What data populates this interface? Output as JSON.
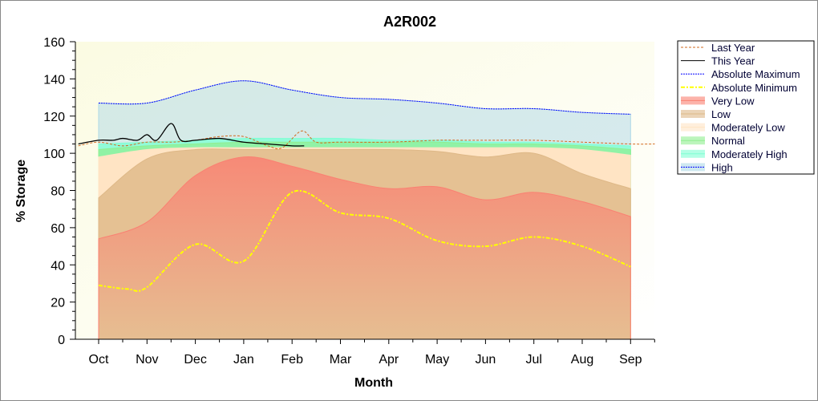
{
  "chart_data": {
    "type": "area",
    "title": "A2R002",
    "xlabel": "Month",
    "ylabel": "% Storage",
    "ylim": [
      0,
      160
    ],
    "yticks": [
      0,
      20,
      40,
      60,
      80,
      100,
      120,
      140,
      160
    ],
    "categories": [
      "Oct",
      "Nov",
      "Dec",
      "Jan",
      "Feb",
      "Mar",
      "Apr",
      "May",
      "Jun",
      "Jul",
      "Aug",
      "Sep"
    ],
    "legend_position": "right",
    "bands": [
      {
        "name": "High",
        "color": "#add8e6",
        "top": [
          127,
          127,
          134,
          139,
          134,
          130,
          129,
          127,
          124,
          124,
          122,
          121
        ]
      },
      {
        "name": "Moderately High",
        "color": "#7fffd4",
        "top": [
          105,
          106,
          107,
          108,
          108,
          108,
          107,
          107,
          106,
          106,
          105,
          104
        ]
      },
      {
        "name": "Normal",
        "color": "#90ee90",
        "top": [
          102,
          104,
          105,
          106,
          106,
          106,
          106,
          106,
          105,
          105,
          104,
          102
        ]
      },
      {
        "name": "Moderately Low",
        "color": "#ffe4c4",
        "top": [
          98,
          102,
          103,
          103,
          103,
          103,
          103,
          103,
          103,
          103,
          102,
          99
        ]
      },
      {
        "name": "Low",
        "color": "#deb887",
        "top": [
          76,
          97,
          102,
          102,
          102,
          102,
          102,
          101,
          98,
          100,
          89,
          81
        ]
      },
      {
        "name": "Very Low",
        "color": "#fa8072",
        "top": [
          54,
          63,
          88,
          98,
          93,
          86,
          81,
          82,
          75,
          79,
          74,
          66
        ]
      }
    ],
    "series": [
      {
        "name": "Last Year",
        "color": "#d2691e",
        "dash": "3,2",
        "x": [
          -0.42,
          0,
          0.5,
          1,
          1.5,
          2,
          2.5,
          3,
          3.5,
          3.8,
          4.2,
          4.5,
          5,
          6,
          7,
          7.5,
          8,
          9,
          10,
          11,
          11.5
        ],
        "values": [
          104,
          106,
          104,
          106,
          106,
          107,
          109,
          109,
          104,
          103,
          112,
          106,
          106,
          106,
          107,
          107,
          107,
          107,
          106,
          105,
          105
        ]
      },
      {
        "name": "This Year",
        "color": "#000000",
        "dash": "",
        "x": [
          -0.42,
          0,
          0.3,
          0.5,
          0.8,
          1,
          1.2,
          1.5,
          1.7,
          2,
          2.5,
          3,
          3.5,
          4,
          4.25
        ],
        "values": [
          105,
          107,
          107,
          108,
          107,
          110,
          107,
          116,
          107,
          107,
          108,
          106,
          105,
          104,
          104
        ]
      },
      {
        "name": "Absolute Maximum",
        "color": "#0000ff",
        "dash": "2,1",
        "x": [
          0,
          1,
          2,
          3,
          4,
          5,
          6,
          7,
          8,
          9,
          10,
          11
        ],
        "values": [
          127,
          127,
          134,
          139,
          134,
          130,
          129,
          127,
          124,
          124,
          122,
          121
        ]
      },
      {
        "name": "Absolute Minimum",
        "color": "#ffff00",
        "dash": "5,2,2,2",
        "x": [
          0,
          0.6,
          1,
          2,
          3,
          4,
          5,
          6,
          7,
          8,
          9,
          10,
          11
        ],
        "values": [
          29,
          27,
          28,
          51,
          42,
          79,
          68,
          65,
          53,
          50,
          55,
          50,
          39
        ]
      }
    ],
    "legend": [
      "Last Year",
      "This Year",
      "Absolute Maximum",
      "Absolute Minimum",
      "Very Low",
      "Low",
      "Moderately Low",
      "Normal",
      "Moderately High",
      "High"
    ]
  }
}
